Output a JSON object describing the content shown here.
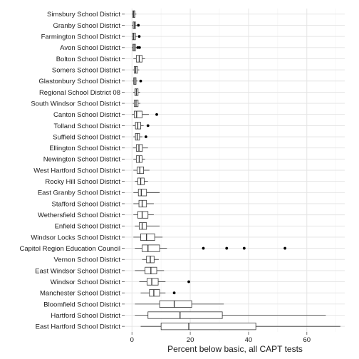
{
  "chart_data": {
    "type": "boxplot",
    "orientation": "horizontal",
    "title": "",
    "xlabel": "Percent below basic, all CAPT tests",
    "ylabel": "",
    "xlim": [
      -2.5,
      73
    ],
    "xticks": [
      0,
      20,
      40,
      60
    ],
    "grid": true,
    "legend": "none",
    "categories": [
      "Simsbury School District",
      "Granby School District",
      "Farmington School District",
      "Avon School District",
      "Bolton School District",
      "Somers School District",
      "Glastonbury School District",
      "Regional School District 08",
      "South Windsor School District",
      "Canton School District",
      "Tolland School District",
      "Suffield School District",
      "Ellington School District",
      "Newington School District",
      "West Hartford School District",
      "Rocky Hill School District",
      "East Granby School District",
      "Stafford School District",
      "Wethersfield School District",
      "Enfield School District",
      "Windsor Locks School District",
      "Capitol Region Education Council",
      "Vernon School District",
      "East Windsor School District",
      "Windsor School District",
      "Manchester School District",
      "Bloomfield School District",
      "Hartford School District",
      "East Hartford School District"
    ],
    "boxes": [
      {
        "whisker_low": 0.0,
        "q1": 0.3,
        "median": 0.6,
        "q3": 1.0,
        "whisker_high": 1.5,
        "outliers": []
      },
      {
        "whisker_low": 0.0,
        "q1": 0.4,
        "median": 0.8,
        "q3": 1.2,
        "whisker_high": 1.6,
        "outliers": [
          2.2
        ]
      },
      {
        "whisker_low": 0.0,
        "q1": 0.2,
        "median": 0.6,
        "q3": 1.2,
        "whisker_high": 1.8,
        "outliers": [
          2.5
        ]
      },
      {
        "whisker_low": 0.0,
        "q1": 0.3,
        "median": 0.7,
        "q3": 1.2,
        "whisker_high": 1.6,
        "outliers": [
          2.0,
          2.6
        ]
      },
      {
        "whisker_low": 0.5,
        "q1": 1.5,
        "median": 2.5,
        "q3": 3.5,
        "whisker_high": 4.5,
        "outliers": []
      },
      {
        "whisker_low": 0.3,
        "q1": 0.8,
        "median": 1.3,
        "q3": 1.9,
        "whisker_high": 2.5,
        "outliers": []
      },
      {
        "whisker_low": 0.2,
        "q1": 0.6,
        "median": 1.0,
        "q3": 1.4,
        "whisker_high": 1.9,
        "outliers": [
          3.0
        ]
      },
      {
        "whisker_low": 0.4,
        "q1": 1.0,
        "median": 1.5,
        "q3": 2.1,
        "whisker_high": 2.8,
        "outliers": []
      },
      {
        "whisker_low": 0.3,
        "q1": 0.8,
        "median": 1.4,
        "q3": 2.1,
        "whisker_high": 2.9,
        "outliers": []
      },
      {
        "whisker_low": 0.0,
        "q1": 0.8,
        "median": 1.6,
        "q3": 3.5,
        "whisker_high": 5.8,
        "outliers": [
          8.5
        ]
      },
      {
        "whisker_low": 0.3,
        "q1": 1.2,
        "median": 2.0,
        "q3": 3.0,
        "whisker_high": 4.0,
        "outliers": [
          5.5
        ]
      },
      {
        "whisker_low": 0.5,
        "q1": 1.2,
        "median": 1.8,
        "q3": 2.6,
        "whisker_high": 3.6,
        "outliers": [
          4.8
        ]
      },
      {
        "whisker_low": 0.3,
        "q1": 1.5,
        "median": 2.4,
        "q3": 3.6,
        "whisker_high": 5.5,
        "outliers": []
      },
      {
        "whisker_low": 0.5,
        "q1": 1.5,
        "median": 2.5,
        "q3": 3.5,
        "whisker_high": 4.5,
        "outliers": []
      },
      {
        "whisker_low": 0.5,
        "q1": 1.8,
        "median": 2.7,
        "q3": 4.0,
        "whisker_high": 6.0,
        "outliers": []
      },
      {
        "whisker_low": 1.0,
        "q1": 2.0,
        "median": 3.0,
        "q3": 4.2,
        "whisker_high": 5.5,
        "outliers": []
      },
      {
        "whisker_low": 0.5,
        "q1": 2.2,
        "median": 3.2,
        "q3": 5.0,
        "whisker_high": 9.5,
        "outliers": []
      },
      {
        "whisker_low": 0.5,
        "q1": 2.4,
        "median": 3.5,
        "q3": 5.0,
        "whisker_high": 7.5,
        "outliers": []
      },
      {
        "whisker_low": 0.5,
        "q1": 2.0,
        "median": 3.5,
        "q3": 5.5,
        "whisker_high": 7.5,
        "outliers": []
      },
      {
        "whisker_low": 1.0,
        "q1": 2.5,
        "median": 3.5,
        "q3": 5.0,
        "whisker_high": 9.5,
        "outliers": []
      },
      {
        "whisker_low": 0.5,
        "q1": 3.0,
        "median": 5.0,
        "q3": 7.8,
        "whisker_high": 10.5,
        "outliers": []
      },
      {
        "whisker_low": 1.0,
        "q1": 3.5,
        "median": 5.5,
        "q3": 9.5,
        "whisker_high": 12.0,
        "outliers": [
          24.5,
          32.5,
          38.5,
          52.5
        ]
      },
      {
        "whisker_low": 3.5,
        "q1": 5.0,
        "median": 6.3,
        "q3": 7.6,
        "whisker_high": 9.2,
        "outliers": []
      },
      {
        "whisker_low": 1.0,
        "q1": 4.5,
        "median": 6.5,
        "q3": 8.5,
        "whisker_high": 11.0,
        "outliers": []
      },
      {
        "whisker_low": 2.5,
        "q1": 5.2,
        "median": 6.8,
        "q3": 9.0,
        "whisker_high": 11.5,
        "outliers": [
          19.5
        ]
      },
      {
        "whisker_low": 3.0,
        "q1": 6.0,
        "median": 7.5,
        "q3": 9.5,
        "whisker_high": 11.5,
        "outliers": [
          14.5
        ]
      },
      {
        "whisker_low": 1.0,
        "q1": 9.5,
        "median": 14.5,
        "q3": 20.5,
        "whisker_high": 31.5,
        "outliers": []
      },
      {
        "whisker_low": 1.0,
        "q1": 5.5,
        "median": 16.5,
        "q3": 31.0,
        "whisker_high": 66.5,
        "outliers": []
      },
      {
        "whisker_low": 3.0,
        "q1": 10.0,
        "median": 19.5,
        "q3": 42.5,
        "whisker_high": 71.5,
        "outliers": []
      }
    ]
  }
}
